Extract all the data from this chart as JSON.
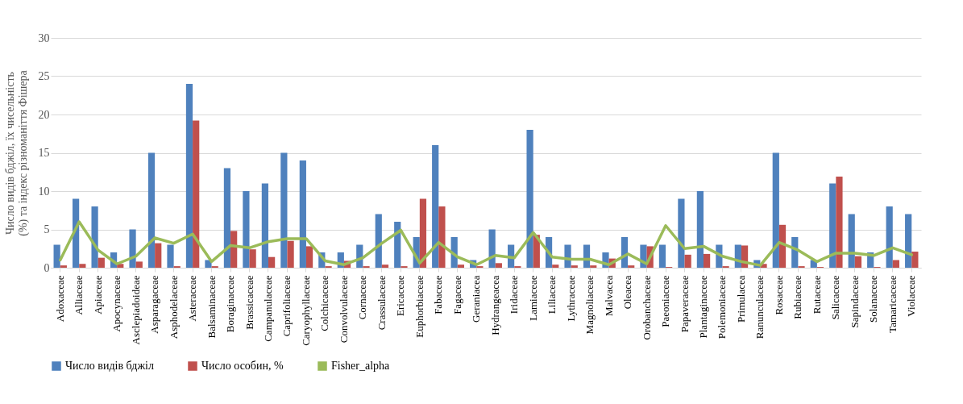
{
  "chart_data": {
    "type": "bar",
    "ylabel": "Число видів бджіл, їх чисельність (%) та індекс різноманіття Фішера",
    "categories": [
      "Adoxaceae",
      "Alliaceae",
      "Apiaceae",
      "Apocynaceae",
      "Asclepiadoideae",
      "Asparagaceae",
      "Asphodelaceae",
      "Asteraceae",
      "Balsaminaceae",
      "Boraginaceae",
      "Brassicaceae",
      "Campanulaceae",
      "Caprifoliaceae",
      "Caryophyllaceae",
      "Colchicaceae",
      "Convolvulaceae",
      "Cornaceae",
      "Crassulaceae",
      "Ericaceae",
      "Euphorbiaceae",
      "Fabaceae",
      "Fagaceae",
      "Geraniacea",
      "Hydrangeacea",
      "Iridaceae",
      "Lamiaceae",
      "Liliaceae",
      "Lythraceae",
      "Magnoliaceae",
      "Malvacea",
      "Oleacea",
      "Orobanchaceae",
      "Paeoniaceae",
      "Papaveraceae",
      "Plantaginaceae",
      "Polemoniaceae",
      "Primulacea",
      "Ranunculaceae",
      "Rosaceae",
      "Rubiaceae",
      "Rutaceae",
      "Salicaceae",
      "Sapindaceae",
      "Solanaceae",
      "Tamaricaceae",
      "Violaceae"
    ],
    "series": [
      {
        "name": "Число видів бджіл",
        "color": "#4f81bd",
        "values": [
          3,
          9,
          8,
          2,
          5,
          15,
          3,
          24,
          1,
          13,
          10,
          11,
          15,
          14,
          2,
          2,
          3,
          7,
          6,
          4,
          16,
          4,
          1,
          5,
          3,
          18,
          4,
          3,
          3,
          2,
          4,
          3,
          3,
          9,
          10,
          3,
          3,
          1,
          15,
          4,
          1,
          11,
          7,
          2,
          8,
          7
        ]
      },
      {
        "name": "Число особин, %",
        "color": "#c0504d",
        "values": [
          0.3,
          0.5,
          1.3,
          0.5,
          0.8,
          3.2,
          0.2,
          19.2,
          0.2,
          4.8,
          2.4,
          1.4,
          3.5,
          2.8,
          0.2,
          0.9,
          0.2,
          0.4,
          0.2,
          9.0,
          8.0,
          0.4,
          0.2,
          0.6,
          0.2,
          4.3,
          0.4,
          0.3,
          0.3,
          1.2,
          0.3,
          2.8,
          0.1,
          1.7,
          1.8,
          0.2,
          2.9,
          0.5,
          5.6,
          0.2,
          0.1,
          11.9,
          1.5,
          0.1,
          1.0,
          2.1
        ]
      },
      {
        "name": "Fisher_alpha",
        "type": "line",
        "color": "#9bbb59",
        "values": [
          1.0,
          6.0,
          2.3,
          0.5,
          1.5,
          3.9,
          3.2,
          4.4,
          0.8,
          2.9,
          2.6,
          3.4,
          3.8,
          3.8,
          0.9,
          0.4,
          1.3,
          3.2,
          4.9,
          0.6,
          3.3,
          1.4,
          0.4,
          1.6,
          1.3,
          4.6,
          1.4,
          1.1,
          1.1,
          0.4,
          1.8,
          0.5,
          5.5,
          2.5,
          2.8,
          1.5,
          0.8,
          0.3,
          3.3,
          2.3,
          0.8,
          1.9,
          1.9,
          1.6,
          2.6,
          1.7
        ]
      }
    ],
    "ylim": [
      0,
      30
    ],
    "yticks": [
      0,
      5,
      10,
      15,
      20,
      25,
      30
    ],
    "grid": "y",
    "legend": "bottom"
  }
}
